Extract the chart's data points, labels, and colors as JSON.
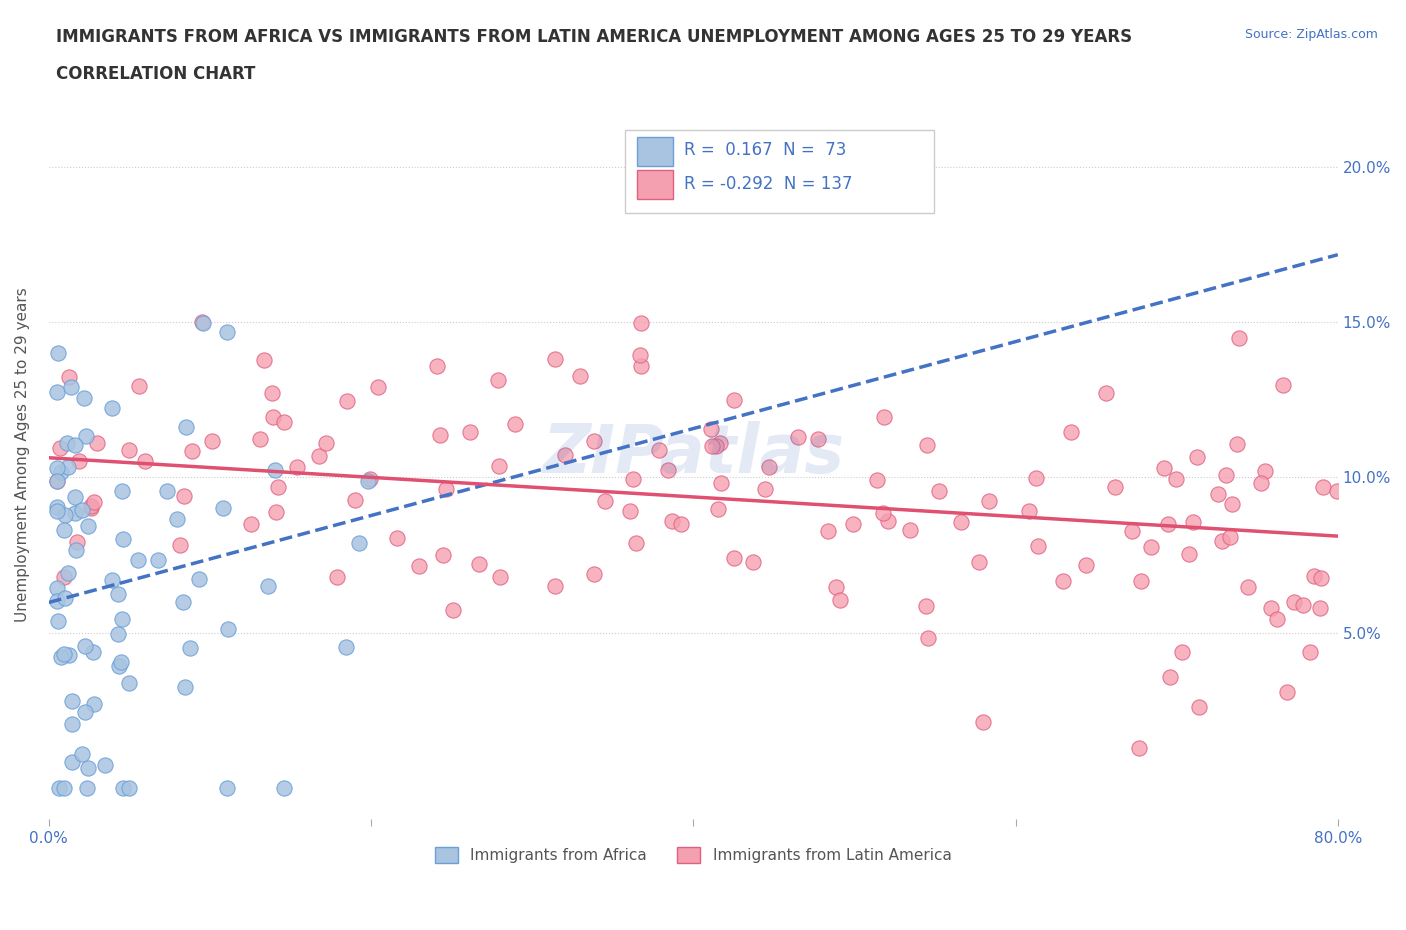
{
  "title_line1": "IMMIGRANTS FROM AFRICA VS IMMIGRANTS FROM LATIN AMERICA UNEMPLOYMENT AMONG AGES 25 TO 29 YEARS",
  "title_line2": "CORRELATION CHART",
  "source_text": "Source: ZipAtlas.com",
  "watermark": "ZIPatlas",
  "ylabel": "Unemployment Among Ages 25 to 29 years",
  "xlim": [
    0.0,
    0.8
  ],
  "ylim": [
    -0.01,
    0.225
  ],
  "africa_color": "#a8c4e0",
  "africa_edge": "#6a9fd8",
  "latin_color": "#f5a0b0",
  "latin_edge": "#e06080",
  "africa_R": 0.167,
  "africa_N": 73,
  "latin_R": -0.292,
  "latin_N": 137,
  "africa_trend_color": "#4472C4",
  "latin_trend_color": "#E05070"
}
